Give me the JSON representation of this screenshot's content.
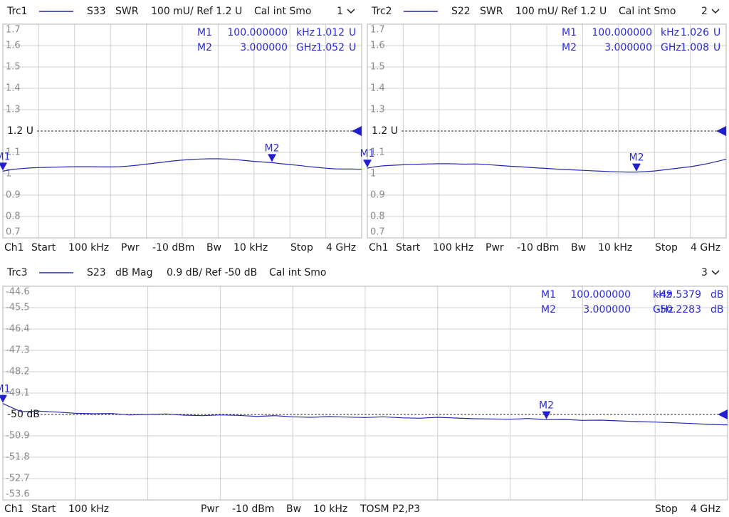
{
  "chart_data": [
    {
      "type": "line",
      "param": "S33",
      "format": "SWR",
      "scale": "100 mU/ Ref 1.2 U",
      "cal": "Cal int Smo",
      "number": "1",
      "footer": [
        "Ch1",
        "Start",
        "100 kHz",
        "Pwr",
        "-10 dBm",
        "Bw",
        "10 kHz",
        "Stop",
        "4 GHz"
      ],
      "x": [
        0.0001,
        0.1,
        0.2,
        0.3,
        0.4,
        0.5,
        0.6,
        0.7,
        0.8,
        0.9,
        1.0,
        1.1,
        1.2,
        1.3,
        1.4,
        1.5,
        1.6,
        1.7,
        1.8,
        1.9,
        2.0,
        2.1,
        2.2,
        2.3,
        2.4,
        2.5,
        2.6,
        2.7,
        2.8,
        2.9,
        3.0,
        3.1,
        3.2,
        3.3,
        3.4,
        3.5,
        3.6,
        3.7,
        3.8,
        3.9,
        4.0
      ],
      "xlim": [
        0.0001,
        4
      ],
      "series": [
        {
          "name": "Trc1",
          "color": "#2525b0",
          "values": [
            1.012,
            1.02,
            1.024,
            1.027,
            1.029,
            1.03,
            1.031,
            1.032,
            1.033,
            1.033,
            1.033,
            1.032,
            1.032,
            1.033,
            1.036,
            1.04,
            1.045,
            1.05,
            1.055,
            1.06,
            1.064,
            1.067,
            1.069,
            1.07,
            1.07,
            1.069,
            1.066,
            1.062,
            1.058,
            1.055,
            1.052,
            1.047,
            1.043,
            1.039,
            1.034,
            1.03,
            1.026,
            1.023,
            1.022,
            1.022,
            1.021
          ]
        }
      ],
      "ylim": [
        0.7,
        1.7
      ],
      "yticks": [
        1.7,
        1.6,
        1.5,
        1.4,
        1.3,
        {
          "value": 1.2,
          "label": "1.2 U"
        },
        1.1,
        1,
        0.9,
        0.8,
        0.7
      ],
      "grid": true,
      "markers": [
        {
          "name": "M1",
          "freq": "100.000000",
          "freq_unit": "kHz",
          "x": 0.0001,
          "value": 1.012,
          "unit": "U"
        },
        {
          "name": "M2",
          "freq": "3.000000",
          "freq_unit": "GHz",
          "x": 3,
          "value": 1.052,
          "unit": "U"
        }
      ]
    },
    {
      "type": "line",
      "param": "S22",
      "format": "SWR",
      "scale": "100 mU/ Ref 1.2 U",
      "cal": "Cal int Smo",
      "number": "2",
      "footer": [
        "Ch1",
        "Start",
        "100 kHz",
        "Pwr",
        "-10 dBm",
        "Bw",
        "10 kHz",
        "Stop",
        "4 GHz"
      ],
      "x": [
        0.0001,
        0.1,
        0.2,
        0.3,
        0.4,
        0.5,
        0.6,
        0.7,
        0.8,
        0.9,
        1.0,
        1.1,
        1.2,
        1.3,
        1.4,
        1.5,
        1.6,
        1.7,
        1.8,
        1.9,
        2.0,
        2.1,
        2.2,
        2.3,
        2.4,
        2.5,
        2.6,
        2.7,
        2.8,
        2.9,
        3.0,
        3.1,
        3.2,
        3.3,
        3.4,
        3.5,
        3.6,
        3.7,
        3.8,
        3.9,
        4.0
      ],
      "xlim": [
        0.0001,
        4
      ],
      "series": [
        {
          "name": "Trc2",
          "color": "#2525b0",
          "values": [
            1.026,
            1.034,
            1.038,
            1.04,
            1.042,
            1.044,
            1.045,
            1.046,
            1.047,
            1.047,
            1.046,
            1.045,
            1.046,
            1.044,
            1.041,
            1.038,
            1.035,
            1.033,
            1.03,
            1.027,
            1.025,
            1.022,
            1.02,
            1.018,
            1.016,
            1.014,
            1.012,
            1.01,
            1.009,
            1.008,
            1.008,
            1.01,
            1.013,
            1.018,
            1.023,
            1.028,
            1.033,
            1.04,
            1.048,
            1.058,
            1.068
          ]
        }
      ],
      "ylim": [
        0.7,
        1.7
      ],
      "yticks": [
        1.7,
        1.6,
        1.5,
        1.4,
        1.3,
        {
          "value": 1.2,
          "label": "1.2 U"
        },
        1.1,
        1,
        0.9,
        0.8,
        0.7
      ],
      "grid": true,
      "markers": [
        {
          "name": "M1",
          "freq": "100.000000",
          "freq_unit": "kHz",
          "x": 0.0001,
          "value": 1.026,
          "unit": "U"
        },
        {
          "name": "M2",
          "freq": "3.000000",
          "freq_unit": "GHz",
          "x": 3,
          "value": 1.008,
          "unit": "U"
        }
      ]
    },
    {
      "type": "line",
      "param": "S23",
      "format": "dB Mag",
      "scale": "0.9 dB/ Ref -50 dB",
      "cal": "Cal int Smo",
      "number": "3",
      "footer": [
        "Ch1",
        "Start",
        "100 kHz",
        "Pwr",
        "-10 dBm",
        "Bw",
        "10 kHz",
        "TOSM P2,P3",
        "Stop",
        "4 GHz"
      ],
      "x": [
        0.0001,
        0.1,
        0.2,
        0.3,
        0.4,
        0.5,
        0.6,
        0.7,
        0.8,
        0.9,
        1.0,
        1.1,
        1.2,
        1.3,
        1.4,
        1.5,
        1.6,
        1.7,
        1.8,
        1.9,
        2.0,
        2.1,
        2.2,
        2.3,
        2.4,
        2.5,
        2.6,
        2.7,
        2.8,
        2.9,
        3.0,
        3.1,
        3.2,
        3.3,
        3.4,
        3.5,
        3.6,
        3.7,
        3.8,
        3.9,
        4.0
      ],
      "xlim": [
        0.0001,
        4
      ],
      "series": [
        {
          "name": "Trc3",
          "color": "#2525b0",
          "values": [
            -49.54,
            -49.88,
            -49.86,
            -49.9,
            -49.95,
            -49.97,
            -49.96,
            -50.02,
            -50.0,
            -49.98,
            -50.03,
            -50.05,
            -50.02,
            -50.04,
            -50.08,
            -50.05,
            -50.1,
            -50.12,
            -50.09,
            -50.11,
            -50.13,
            -50.1,
            -50.14,
            -50.16,
            -50.12,
            -50.15,
            -50.18,
            -50.19,
            -50.2,
            -50.17,
            -50.22,
            -50.21,
            -50.25,
            -50.24,
            -50.27,
            -50.3,
            -50.32,
            -50.35,
            -50.38,
            -50.42,
            -50.44
          ]
        }
      ],
      "ylim": [
        -53.6,
        -44.6
      ],
      "yticks": [
        -44.6,
        -45.5,
        -46.4,
        -47.3,
        -48.2,
        -49.1,
        {
          "value": -50,
          "label": "-50 dB"
        },
        -50.9,
        -51.8,
        -52.7,
        -53.6
      ],
      "grid": true,
      "markers": [
        {
          "name": "M1",
          "freq": "100.000000",
          "freq_unit": "kHz",
          "x": 0.0001,
          "value": -49.5379,
          "unit": "dB"
        },
        {
          "name": "M2",
          "freq": "3.000000",
          "freq_unit": "GHz",
          "x": 3,
          "value": -50.2283,
          "unit": "dB"
        }
      ]
    }
  ]
}
